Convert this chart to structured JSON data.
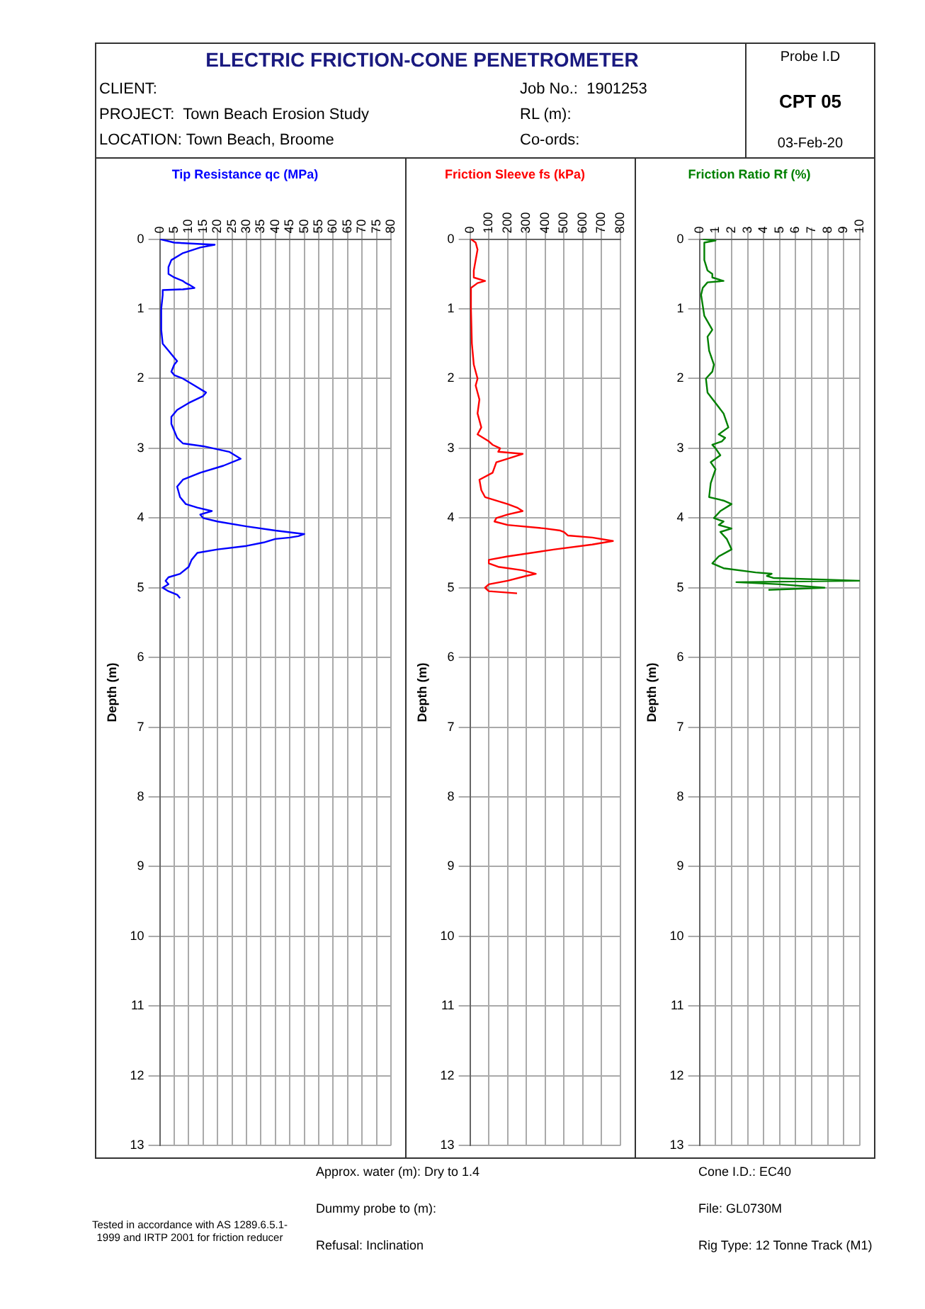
{
  "chart_data": [
    {
      "type": "other",
      "title": "ELECTRIC FRICTION-CONE PENETROMETER",
      "annotations": [
        "CLIENT:",
        "Job No.:  1901253",
        "PROJECT:  Town Beach Erosion Study",
        "RL (m):",
        "LOCATION: Town Beach, Broome",
        "Co-ords:",
        "Probe I.D",
        "CPT 05",
        "03-Feb-20"
      ]
    },
    {
      "type": "line",
      "orientation": "horizontal",
      "title": "Tip Resistance qc (MPa)",
      "ylabel": "Depth (m)",
      "xlim": [
        0,
        80
      ],
      "xticks": [
        0,
        5,
        10,
        15,
        20,
        25,
        30,
        35,
        40,
        45,
        50,
        55,
        60,
        65,
        70,
        75,
        80
      ],
      "ylim": [
        13,
        0
      ],
      "yticks": [
        0,
        1,
        2,
        3,
        4,
        5,
        6,
        7,
        8,
        9,
        10,
        11,
        12,
        13
      ],
      "grid": true,
      "legend": false,
      "marker": "none",
      "series": [
        {
          "color": "#0000ff",
          "values": [
            0,
            5,
            19,
            14,
            8,
            4,
            3,
            3,
            5,
            8,
            9,
            10,
            12,
            8,
            1,
            1,
            0.5,
            0.5,
            1,
            3,
            5,
            6,
            5,
            4,
            5,
            8,
            12,
            16,
            15,
            10,
            6,
            4,
            4,
            5,
            6,
            8,
            15,
            24,
            28,
            22,
            14,
            8,
            6,
            7,
            9,
            13,
            18,
            14,
            15,
            20,
            30,
            40,
            50,
            48,
            45,
            40,
            36,
            30,
            20,
            13,
            11,
            10,
            7,
            3,
            2,
            3,
            1,
            3,
            6,
            7
          ],
          "x": [
            0,
            0.05,
            0.08,
            0.12,
            0.2,
            0.3,
            0.4,
            0.5,
            0.55,
            0.6,
            0.63,
            0.65,
            0.7,
            0.72,
            0.73,
            0.8,
            1.0,
            1.3,
            1.5,
            1.6,
            1.7,
            1.75,
            1.8,
            1.9,
            1.95,
            2.0,
            2.1,
            2.2,
            2.25,
            2.35,
            2.45,
            2.55,
            2.65,
            2.75,
            2.85,
            2.93,
            2.97,
            3.05,
            3.15,
            3.25,
            3.35,
            3.45,
            3.55,
            3.7,
            3.8,
            3.85,
            3.9,
            3.95,
            4.0,
            4.05,
            4.12,
            4.18,
            4.23,
            4.26,
            4.28,
            4.3,
            4.35,
            4.4,
            4.45,
            4.5,
            4.6,
            4.7,
            4.8,
            4.85,
            4.9,
            4.95,
            5.0,
            5.05,
            5.1,
            5.15
          ]
        }
      ]
    },
    {
      "type": "line",
      "orientation": "horizontal",
      "title": "Friction Sleeve fs (kPa)",
      "ylabel": "Depth (m)",
      "xlim": [
        0,
        800
      ],
      "xticks": [
        0,
        100,
        200,
        300,
        400,
        500,
        600,
        700,
        800
      ],
      "ylim": [
        13,
        0
      ],
      "yticks": [
        0,
        1,
        2,
        3,
        4,
        5,
        6,
        7,
        8,
        9,
        10,
        11,
        12,
        13
      ],
      "grid": true,
      "legend": false,
      "marker": "none",
      "series": [
        {
          "color": "#ff0000",
          "values": [
            5,
            30,
            40,
            30,
            20,
            20,
            80,
            40,
            5,
            5,
            10,
            20,
            40,
            30,
            50,
            40,
            60,
            40,
            100,
            120,
            160,
            150,
            280,
            200,
            140,
            120,
            50,
            60,
            80,
            200,
            250,
            280,
            200,
            140,
            130,
            200,
            400,
            480,
            500,
            520,
            650,
            760,
            650,
            450,
            200,
            100,
            100,
            150,
            280,
            350,
            300,
            200,
            100,
            80,
            100,
            250
          ],
          "x": [
            0,
            0.05,
            0.15,
            0.3,
            0.45,
            0.55,
            0.6,
            0.63,
            0.7,
            1.0,
            1.5,
            1.8,
            2.0,
            2.1,
            2.3,
            2.5,
            2.7,
            2.8,
            2.9,
            2.95,
            3.0,
            3.05,
            3.08,
            3.15,
            3.2,
            3.35,
            3.45,
            3.6,
            3.7,
            3.8,
            3.85,
            3.9,
            3.95,
            4.0,
            4.05,
            4.1,
            4.15,
            4.18,
            4.2,
            4.25,
            4.28,
            4.33,
            4.38,
            4.45,
            4.55,
            4.6,
            4.65,
            4.7,
            4.75,
            4.8,
            4.83,
            4.9,
            4.95,
            5.0,
            5.05,
            5.08
          ]
        }
      ]
    },
    {
      "type": "line",
      "orientation": "horizontal",
      "title": "Friction Ratio Rf (%)",
      "ylabel": "Depth (m)",
      "xlim": [
        0,
        10
      ],
      "xticks": [
        0,
        1,
        2,
        3,
        4,
        5,
        6,
        7,
        8,
        9,
        10
      ],
      "ylim": [
        13,
        0
      ],
      "yticks": [
        0,
        1,
        2,
        3,
        4,
        5,
        6,
        7,
        8,
        9,
        10,
        11,
        12,
        13
      ],
      "grid": true,
      "legend": false,
      "marker": "none",
      "series": [
        {
          "color": "#008000",
          "values": [
            0.2,
            1,
            0.3,
            0.3,
            0.5,
            0.8,
            0.8,
            1.5,
            0.5,
            0.2,
            0.1,
            0.3,
            0.8,
            0.5,
            0.6,
            0.9,
            0.8,
            0.4,
            0.5,
            1.5,
            1.8,
            1.2,
            1.6,
            1.4,
            0.8,
            1.0,
            1.3,
            0.7,
            1.0,
            0.7,
            0.6,
            1.5,
            2.0,
            1.3,
            0.9,
            1.5,
            1.2,
            2.0,
            1.3,
            1.7,
            2.0,
            1.2,
            0.8,
            1.5,
            3.5,
            4.5,
            4.2,
            4.6,
            10,
            2.3,
            5,
            7.8,
            4.3
          ],
          "x": [
            0,
            0.02,
            0.05,
            0.3,
            0.45,
            0.5,
            0.55,
            0.6,
            0.62,
            0.7,
            0.8,
            1.1,
            1.3,
            1.4,
            1.6,
            1.8,
            1.9,
            2.0,
            2.2,
            2.5,
            2.7,
            2.8,
            2.85,
            2.9,
            2.95,
            3.0,
            3.1,
            3.2,
            3.3,
            3.5,
            3.7,
            3.75,
            3.8,
            3.9,
            4.0,
            4.05,
            4.1,
            4.15,
            4.2,
            4.3,
            4.45,
            4.55,
            4.65,
            4.72,
            4.78,
            4.8,
            4.83,
            4.86,
            4.9,
            4.92,
            4.95,
            5.0,
            5.03
          ]
        }
      ]
    },
    {
      "type": "other",
      "annotations": [
        "Tested in accordance with AS 1289.6.5.1-1999 and IRTP 2001 for friction reducer",
        "Approx. water (m): Dry to 1.4",
        "Dummy probe to (m):",
        "Refusal: Inclination",
        "Cone I.D.: EC40",
        "File: GL0730M",
        "Rig Type: 12 Tonne Track (M1)"
      ]
    }
  ]
}
